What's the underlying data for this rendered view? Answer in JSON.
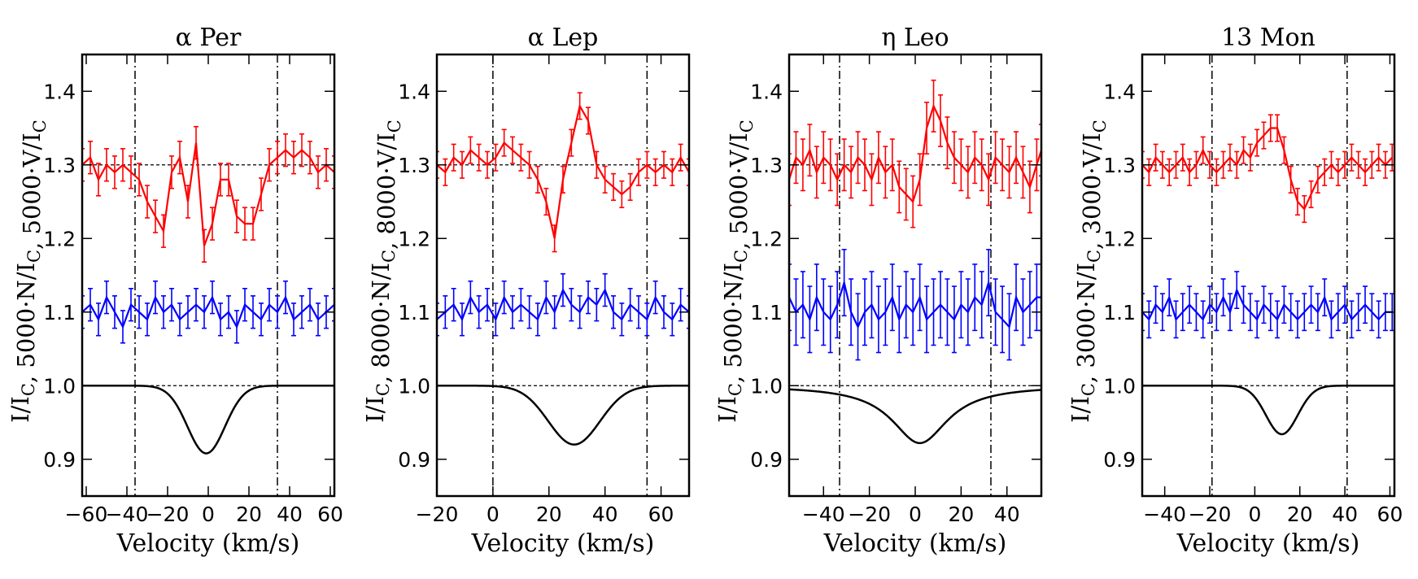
{
  "chart_data": [
    {
      "type": "line",
      "title": "α Per",
      "xlabel": "Velocity (km/s)",
      "ylabel": "I/I_C, 5000·N/I_C, 5000·V/I_C",
      "ylabel_parts": {
        "i": "I/I",
        "n": ", 5000·N/I",
        "v": ", 5000·V/I",
        "sub": "C"
      },
      "xlim": [
        -62,
        62
      ],
      "ylim": [
        0.85,
        1.45
      ],
      "xticks": [
        -60,
        -40,
        -20,
        0,
        20,
        40,
        60
      ],
      "xtick_labels": [
        "−60",
        "−40",
        "−20",
        "0",
        "20",
        "40",
        "60"
      ],
      "yticks": [
        0.9,
        1.0,
        1.1,
        1.2,
        1.3,
        1.4
      ],
      "ytick_labels": [
        "0.9",
        "1.0",
        "1.1",
        "1.2",
        "1.3",
        "1.4"
      ],
      "vlines": [
        -36,
        34
      ],
      "hlines": [
        1.0,
        1.3
      ],
      "stokes_i": {
        "center": -1,
        "depth": 0.092,
        "width": 13,
        "shape": "gauss"
      },
      "series": [
        {
          "name": "V",
          "color": "#ff0000",
          "err": 0.022,
          "x": [
            -62,
            -58,
            -54,
            -50,
            -46,
            -42,
            -38,
            -34,
            -30,
            -26,
            -22,
            -18,
            -14,
            -10,
            -6,
            -2,
            2,
            6,
            10,
            14,
            18,
            22,
            26,
            30,
            34,
            38,
            42,
            46,
            50,
            54,
            58,
            62
          ],
          "values": [
            1.3,
            1.31,
            1.28,
            1.3,
            1.29,
            1.3,
            1.29,
            1.28,
            1.25,
            1.23,
            1.21,
            1.29,
            1.31,
            1.25,
            1.33,
            1.19,
            1.22,
            1.28,
            1.28,
            1.23,
            1.22,
            1.22,
            1.26,
            1.3,
            1.31,
            1.32,
            1.31,
            1.32,
            1.31,
            1.29,
            1.3,
            1.29
          ]
        },
        {
          "name": "N",
          "color": "#0000ff",
          "err": 0.022,
          "x": [
            -62,
            -58,
            -54,
            -50,
            -46,
            -42,
            -38,
            -34,
            -30,
            -26,
            -22,
            -18,
            -14,
            -10,
            -6,
            -2,
            2,
            6,
            10,
            14,
            18,
            22,
            26,
            30,
            34,
            38,
            42,
            46,
            50,
            54,
            58,
            62
          ],
          "values": [
            1.1,
            1.11,
            1.09,
            1.12,
            1.1,
            1.08,
            1.11,
            1.1,
            1.09,
            1.12,
            1.1,
            1.11,
            1.09,
            1.1,
            1.11,
            1.1,
            1.12,
            1.09,
            1.1,
            1.08,
            1.11,
            1.1,
            1.09,
            1.11,
            1.1,
            1.12,
            1.09,
            1.1,
            1.11,
            1.09,
            1.1,
            1.11
          ]
        }
      ]
    },
    {
      "type": "line",
      "title": "α Lep",
      "xlabel": "Velocity (km/s)",
      "ylabel": "I/I_C, 8000·N/I_C, 8000·V/I_C",
      "ylabel_parts": {
        "i": "I/I",
        "n": ", 8000·N/I",
        "v": ", 8000·V/I",
        "sub": "C"
      },
      "xlim": [
        -20,
        70
      ],
      "ylim": [
        0.85,
        1.45
      ],
      "xticks": [
        -20,
        0,
        20,
        40,
        60
      ],
      "xtick_labels": [
        "−20",
        "0",
        "20",
        "40",
        "60"
      ],
      "yticks": [
        0.9,
        1.0,
        1.1,
        1.2,
        1.3,
        1.4
      ],
      "ytick_labels": [
        "0.9",
        "1.0",
        "1.1",
        "1.2",
        "1.3",
        "1.4"
      ],
      "vlines": [
        0,
        55
      ],
      "hlines": [
        1.0,
        1.3
      ],
      "stokes_i": {
        "center": 29,
        "depth": 0.08,
        "width": 13,
        "shape": "gauss"
      },
      "series": [
        {
          "name": "V",
          "color": "#ff0000",
          "err": 0.018,
          "x": [
            -20,
            -17,
            -14,
            -11,
            -8,
            -5,
            -2,
            1,
            4,
            7,
            10,
            13,
            16,
            19,
            22,
            25,
            28,
            31,
            34,
            37,
            40,
            43,
            46,
            49,
            52,
            55,
            58,
            61,
            64,
            67,
            70
          ],
          "values": [
            1.3,
            1.29,
            1.31,
            1.3,
            1.32,
            1.31,
            1.3,
            1.31,
            1.33,
            1.32,
            1.31,
            1.3,
            1.28,
            1.25,
            1.2,
            1.28,
            1.33,
            1.38,
            1.36,
            1.3,
            1.28,
            1.27,
            1.26,
            1.27,
            1.29,
            1.3,
            1.29,
            1.3,
            1.29,
            1.31,
            1.29
          ]
        },
        {
          "name": "N",
          "color": "#0000ff",
          "err": 0.022,
          "x": [
            -20,
            -17,
            -14,
            -11,
            -8,
            -5,
            -2,
            1,
            4,
            7,
            10,
            13,
            16,
            19,
            22,
            25,
            28,
            31,
            34,
            37,
            40,
            43,
            46,
            49,
            52,
            55,
            58,
            61,
            64,
            67,
            70
          ],
          "values": [
            1.09,
            1.1,
            1.11,
            1.09,
            1.12,
            1.1,
            1.11,
            1.09,
            1.12,
            1.1,
            1.11,
            1.1,
            1.09,
            1.12,
            1.1,
            1.13,
            1.11,
            1.1,
            1.12,
            1.11,
            1.13,
            1.1,
            1.09,
            1.11,
            1.1,
            1.09,
            1.12,
            1.1,
            1.09,
            1.11,
            1.1
          ]
        }
      ]
    },
    {
      "type": "line",
      "title": "η Leo",
      "xlabel": "Velocity (km/s)",
      "ylabel": "I/I_C, 5000·N/I_C, 5000·V/I_C",
      "ylabel_parts": {
        "i": "I/I",
        "n": ", 5000·N/I",
        "v": ", 5000·V/I",
        "sub": "C"
      },
      "xlim": [
        -55,
        55
      ],
      "ylim": [
        0.85,
        1.45
      ],
      "xticks": [
        -40,
        -20,
        0,
        20,
        40
      ],
      "xtick_labels": [
        "−40",
        "−20",
        "0",
        "20",
        "40"
      ],
      "yticks": [
        0.9,
        1.0,
        1.1,
        1.2,
        1.3,
        1.4
      ],
      "ytick_labels": [
        "0.9",
        "1.0",
        "1.1",
        "1.2",
        "1.3",
        "1.4"
      ],
      "vlines": [
        -33,
        33
      ],
      "hlines": [
        1.0,
        1.3
      ],
      "stokes_i": {
        "center": 2,
        "depth": 0.078,
        "width": 15,
        "shape": "lorentz"
      },
      "series": [
        {
          "name": "V",
          "color": "#ff0000",
          "err": 0.035,
          "x": [
            -55,
            -52,
            -49,
            -46,
            -43,
            -40,
            -37,
            -34,
            -31,
            -28,
            -25,
            -22,
            -19,
            -16,
            -13,
            -10,
            -7,
            -4,
            -1,
            2,
            5,
            8,
            11,
            14,
            17,
            20,
            23,
            26,
            29,
            32,
            35,
            38,
            41,
            44,
            47,
            50,
            53,
            55
          ],
          "values": [
            1.28,
            1.31,
            1.3,
            1.32,
            1.29,
            1.31,
            1.3,
            1.28,
            1.3,
            1.29,
            1.31,
            1.3,
            1.28,
            1.31,
            1.29,
            1.3,
            1.27,
            1.26,
            1.25,
            1.28,
            1.35,
            1.38,
            1.36,
            1.33,
            1.31,
            1.3,
            1.29,
            1.31,
            1.3,
            1.28,
            1.31,
            1.3,
            1.29,
            1.31,
            1.29,
            1.27,
            1.3,
            1.32
          ]
        },
        {
          "name": "N",
          "color": "#0000ff",
          "err": 0.045,
          "x": [
            -55,
            -52,
            -49,
            -46,
            -43,
            -40,
            -37,
            -34,
            -31,
            -28,
            -25,
            -22,
            -19,
            -16,
            -13,
            -10,
            -7,
            -4,
            -1,
            2,
            5,
            8,
            11,
            14,
            17,
            20,
            23,
            26,
            29,
            32,
            35,
            38,
            41,
            44,
            47,
            50,
            53,
            55
          ],
          "values": [
            1.12,
            1.1,
            1.11,
            1.09,
            1.12,
            1.1,
            1.09,
            1.11,
            1.14,
            1.1,
            1.08,
            1.1,
            1.11,
            1.09,
            1.1,
            1.12,
            1.09,
            1.11,
            1.1,
            1.12,
            1.09,
            1.1,
            1.11,
            1.1,
            1.09,
            1.11,
            1.1,
            1.12,
            1.11,
            1.14,
            1.1,
            1.09,
            1.08,
            1.12,
            1.1,
            1.11,
            1.12,
            1.12
          ]
        }
      ]
    },
    {
      "type": "line",
      "title": "13 Mon",
      "xlabel": "Velocity (km/s)",
      "ylabel": "I/I_C, 3000·N/I_C, 3000·V/I_C",
      "ylabel_parts": {
        "i": "I/I",
        "n": ", 3000·N/I",
        "v": ", 3000·V/I",
        "sub": "C"
      },
      "xlim": [
        -50,
        62
      ],
      "ylim": [
        0.85,
        1.45
      ],
      "xticks": [
        -40,
        -20,
        0,
        20,
        40,
        60
      ],
      "xtick_labels": [
        "−40",
        "−20",
        "0",
        "20",
        "40",
        "60"
      ],
      "yticks": [
        0.9,
        1.0,
        1.1,
        1.2,
        1.3,
        1.4
      ],
      "ytick_labels": [
        "0.9",
        "1.0",
        "1.1",
        "1.2",
        "1.3",
        "1.4"
      ],
      "vlines": [
        -19,
        41
      ],
      "hlines": [
        1.0,
        1.3
      ],
      "stokes_i": {
        "center": 12,
        "depth": 0.066,
        "width": 10,
        "shape": "gauss"
      },
      "series": [
        {
          "name": "V",
          "color": "#ff0000",
          "err": 0.018,
          "x": [
            -50,
            -47,
            -44,
            -41,
            -38,
            -35,
            -32,
            -29,
            -26,
            -23,
            -20,
            -17,
            -14,
            -11,
            -8,
            -5,
            -2,
            1,
            4,
            7,
            10,
            13,
            16,
            19,
            22,
            25,
            28,
            31,
            34,
            37,
            40,
            43,
            46,
            49,
            52,
            55,
            58,
            61
          ],
          "values": [
            1.3,
            1.29,
            1.31,
            1.3,
            1.29,
            1.3,
            1.31,
            1.29,
            1.3,
            1.32,
            1.3,
            1.29,
            1.3,
            1.31,
            1.3,
            1.32,
            1.31,
            1.33,
            1.34,
            1.35,
            1.35,
            1.32,
            1.28,
            1.25,
            1.24,
            1.26,
            1.28,
            1.29,
            1.3,
            1.29,
            1.3,
            1.31,
            1.3,
            1.29,
            1.3,
            1.31,
            1.3,
            1.31
          ]
        },
        {
          "name": "N",
          "color": "#0000ff",
          "err": 0.025,
          "x": [
            -50,
            -47,
            -44,
            -41,
            -38,
            -35,
            -32,
            -29,
            -26,
            -23,
            -20,
            -17,
            -14,
            -11,
            -8,
            -5,
            -2,
            1,
            4,
            7,
            10,
            13,
            16,
            19,
            22,
            25,
            28,
            31,
            34,
            37,
            40,
            43,
            46,
            49,
            52,
            55,
            58,
            61
          ],
          "values": [
            1.1,
            1.09,
            1.11,
            1.1,
            1.12,
            1.09,
            1.1,
            1.11,
            1.1,
            1.09,
            1.11,
            1.1,
            1.12,
            1.1,
            1.13,
            1.11,
            1.1,
            1.09,
            1.11,
            1.1,
            1.09,
            1.11,
            1.1,
            1.09,
            1.1,
            1.11,
            1.1,
            1.12,
            1.09,
            1.1,
            1.11,
            1.09,
            1.1,
            1.11,
            1.1,
            1.09,
            1.1,
            1.1
          ]
        }
      ]
    }
  ]
}
